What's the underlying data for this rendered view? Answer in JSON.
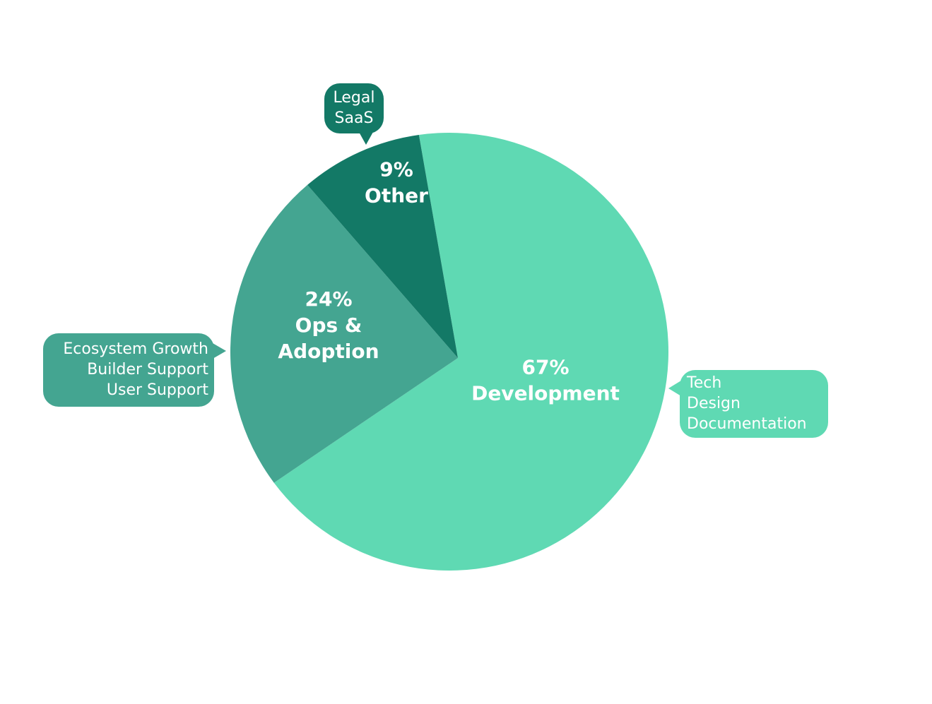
{
  "chart_data": {
    "type": "pie",
    "title": "",
    "start_angle_deg": -8,
    "slices": [
      {
        "name": "Development",
        "value": 67,
        "percent_label": "67%",
        "label_lines": [
          "Development"
        ],
        "color": "#5fd9b3",
        "callout": [
          "Tech",
          "Design",
          "Documentation"
        ]
      },
      {
        "name": "Ops & Adoption",
        "value": 24,
        "percent_label": "24%",
        "label_lines": [
          "Ops &",
          "Adoption"
        ],
        "color": "#44a591",
        "callout": [
          "Ecosystem Growth",
          "Builder Support",
          "User Support"
        ]
      },
      {
        "name": "Other",
        "value": 9,
        "percent_label": "9%",
        "label_lines": [
          "Other"
        ],
        "color": "#137966",
        "callout": [
          "Legal",
          "SaaS"
        ]
      }
    ]
  }
}
